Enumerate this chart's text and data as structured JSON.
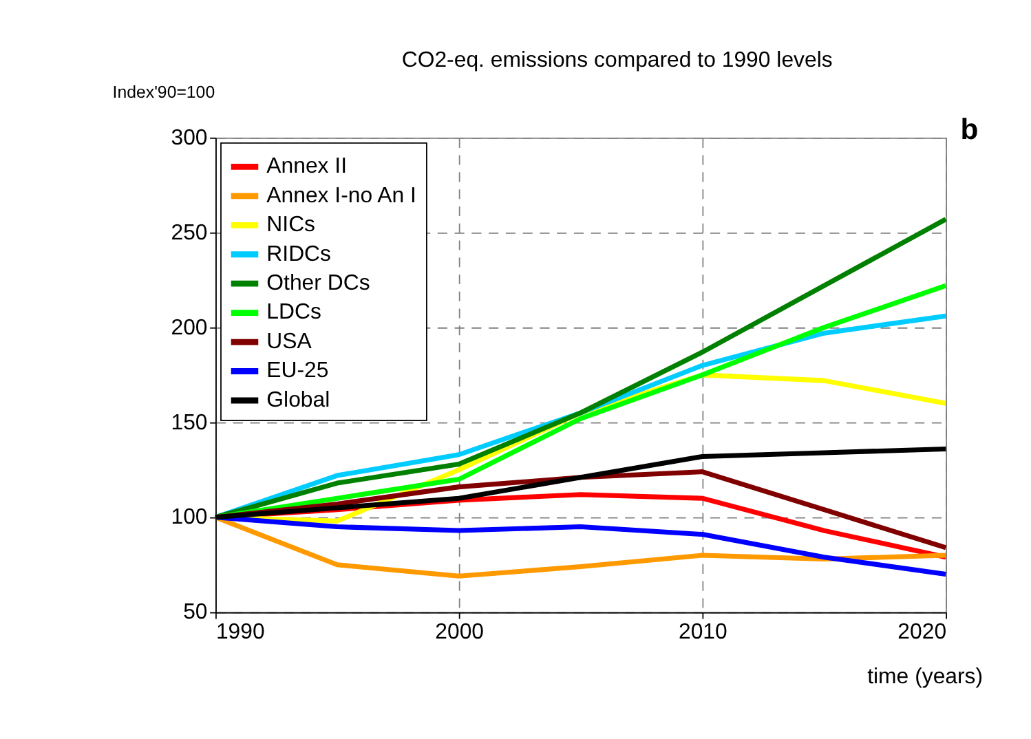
{
  "chart_data": {
    "type": "line",
    "title": "CO2-eq. emissions compared to 1990 levels",
    "ylabel": "Index'90=100",
    "xlabel": "time (years)",
    "annotations": [
      "b"
    ],
    "x": [
      1990,
      1995,
      2000,
      2005,
      2010,
      2015,
      2020
    ],
    "series": [
      {
        "name": "Annex II",
        "color": "#ff0000",
        "values": [
          100,
          104,
          109,
          112,
          110,
          93,
          79
        ]
      },
      {
        "name": "Annex I-no An I",
        "color": "#ff9900",
        "values": [
          100,
          75,
          69,
          74,
          80,
          78,
          80
        ]
      },
      {
        "name": "NICs",
        "color": "#ffff00",
        "values": [
          100,
          98,
          125,
          155,
          175,
          172,
          160
        ]
      },
      {
        "name": "RIDCs",
        "color": "#00ccff",
        "values": [
          100,
          122,
          133,
          155,
          180,
          197,
          206
        ]
      },
      {
        "name": "Other DCs",
        "color": "#008000",
        "values": [
          100,
          118,
          128,
          155,
          187,
          222,
          257
        ]
      },
      {
        "name": "LDCs",
        "color": "#00ff00",
        "values": [
          100,
          110,
          120,
          152,
          175,
          200,
          222
        ]
      },
      {
        "name": "USA",
        "color": "#800000",
        "values": [
          100,
          107,
          116,
          121,
          124,
          104,
          84
        ]
      },
      {
        "name": "EU-25",
        "color": "#0000ff",
        "values": [
          100,
          95,
          93,
          95,
          91,
          79,
          70
        ]
      },
      {
        "name": "Global",
        "color": "#000000",
        "values": [
          100,
          105,
          110,
          121,
          132,
          134,
          136
        ]
      }
    ],
    "xlim": [
      1990,
      2020
    ],
    "xticks": [
      1990,
      2000,
      2010,
      2020
    ],
    "ylim": [
      50,
      300
    ],
    "yticks": [
      50,
      100,
      150,
      200,
      250,
      300
    ],
    "grid": true,
    "legend": "top left",
    "marker": "none",
    "line_style": "solid"
  }
}
